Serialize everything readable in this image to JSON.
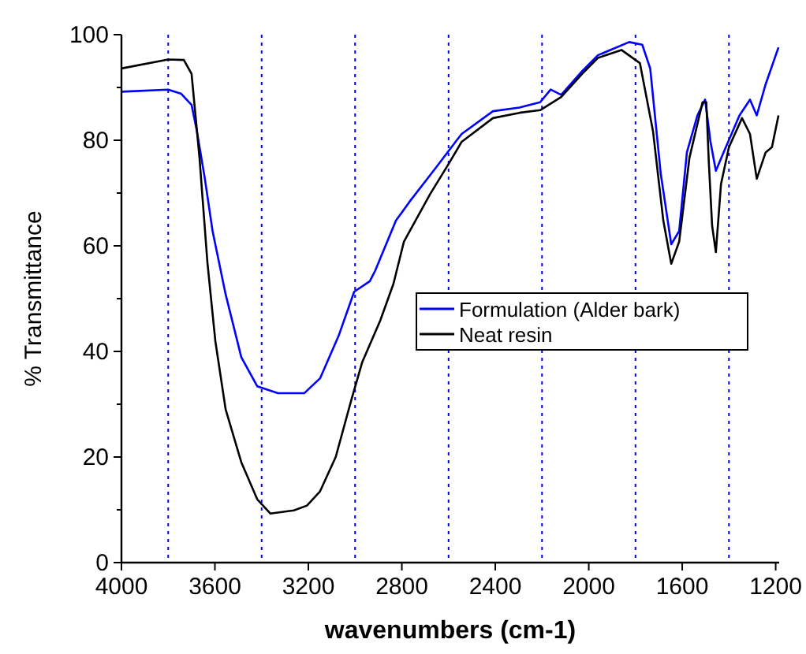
{
  "chart_data": {
    "type": "line",
    "xlabel": "wavenumbers (cm-1)",
    "ylabel": "% Transmittance",
    "xlim": [
      4000,
      1185
    ],
    "xticks": [
      4000,
      3600,
      3200,
      2800,
      2400,
      2000,
      1600,
      1200
    ],
    "ylim": [
      0,
      100
    ],
    "yticks": [
      0,
      {
        "value": 10,
        "label": null
      },
      20,
      {
        "value": 30,
        "label": null
      },
      40,
      {
        "value": 50,
        "label": null
      },
      60,
      {
        "value": 70,
        "label": null
      },
      80,
      {
        "value": 90,
        "label": null
      },
      100
    ],
    "grid": false,
    "legend": "right",
    "line_style": "solid",
    "ref_lines": [
      {
        "axis": "x",
        "value": 3800,
        "color": "#0000ff",
        "line_style": "dotted"
      },
      {
        "axis": "x",
        "value": 3400,
        "color": "#0000ff",
        "line_style": "dotted"
      },
      {
        "axis": "x",
        "value": 3000,
        "color": "#0000ff",
        "line_style": "dotted"
      },
      {
        "axis": "x",
        "value": 2600,
        "color": "#0000ff",
        "line_style": "dotted"
      },
      {
        "axis": "x",
        "value": 2200,
        "color": "#0000ff",
        "line_style": "dotted"
      },
      {
        "axis": "x",
        "value": 1800,
        "color": "#0000ff",
        "line_style": "dotted"
      },
      {
        "axis": "x",
        "value": 1400,
        "color": "#0000ff",
        "line_style": "dotted"
      }
    ],
    "series": [
      {
        "name": "Formulation (Alder bark)",
        "color": "#0000ff",
        "x": [
          4000,
          3800,
          3744,
          3700,
          3677,
          3643,
          3610,
          3554,
          3487,
          3419,
          3330,
          3217,
          3150,
          3071,
          3004,
          2937,
          2914,
          2825,
          2768,
          2656,
          2567,
          2544,
          2410,
          2297,
          2208,
          2163,
          2118,
          2028,
          1961,
          1827,
          1771,
          1737,
          1692,
          1647,
          1613,
          1580,
          1535,
          1502,
          1479,
          1456,
          1423,
          1355,
          1310,
          1281,
          1243,
          1188
        ],
        "values": [
          89.2,
          89.6,
          88.8,
          86.7,
          81.7,
          72.7,
          62.8,
          50.8,
          38.9,
          33.4,
          32.1,
          32.1,
          34.9,
          42.9,
          51.3,
          53.3,
          55.3,
          64.8,
          68.3,
          74.7,
          79.9,
          81.2,
          85.5,
          86.2,
          87.2,
          89.6,
          88.6,
          93.1,
          96.1,
          98.6,
          98.1,
          93.6,
          73.7,
          60.3,
          62.8,
          77.7,
          84.7,
          87.7,
          79.7,
          74.2,
          77.7,
          84.7,
          87.7,
          84.7,
          90.6,
          97.6
        ]
      },
      {
        "name": "Neat resin",
        "color": "#000000",
        "x": [
          4000,
          3800,
          3733,
          3700,
          3666,
          3632,
          3598,
          3554,
          3487,
          3419,
          3363,
          3262,
          3206,
          3150,
          3083,
          3015,
          2970,
          2892,
          2836,
          2791,
          2679,
          2600,
          2544,
          2410,
          2297,
          2208,
          2118,
          2028,
          1961,
          1860,
          1781,
          1725,
          1681,
          1647,
          1613,
          1569,
          1513,
          1497,
          1486,
          1472,
          1456,
          1434,
          1400,
          1344,
          1310,
          1281,
          1243,
          1216,
          1188
        ],
        "values": [
          93.6,
          95.3,
          95.2,
          92.6,
          76.7,
          56.8,
          41.9,
          29,
          19,
          12,
          9.3,
          9.9,
          10.8,
          13.5,
          20,
          31,
          37.9,
          45.9,
          52.8,
          60.8,
          69.8,
          75.5,
          79.7,
          84.2,
          85.2,
          85.7,
          88.2,
          92.6,
          95.6,
          97.1,
          94.6,
          81.7,
          64.8,
          56.6,
          60.8,
          76.7,
          87.2,
          87.2,
          75.7,
          63.8,
          58.8,
          71.7,
          78.7,
          84.2,
          81.2,
          72.7,
          77.7,
          78.7,
          84.7
        ]
      }
    ]
  }
}
